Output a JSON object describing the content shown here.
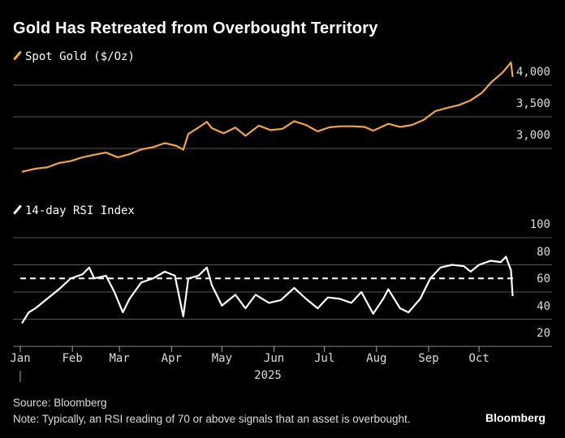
{
  "title": "Gold Has Retreated from Overbought Territory",
  "source": "Source: Bloomberg",
  "note": "Note: Typically, an RSI reading of 70 or above signals that an asset is overbought.",
  "brand": "Bloomberg",
  "year_label": "2025",
  "colors": {
    "gold": "#f2a540",
    "rsi": "#ffffff",
    "grid": "#555555",
    "background": "#000000"
  },
  "chart_data": [
    {
      "type": "line",
      "legend": "Spot Gold ($/Oz)",
      "ylim": [
        2600,
        4400
      ],
      "yticks": [
        3000,
        3500,
        4000
      ],
      "ytick_labels": [
        "3,000",
        "3,500",
        "4,000"
      ],
      "grid": true,
      "series": [
        {
          "name": "Spot Gold ($/Oz)",
          "x": [
            "2025-01-02",
            "2025-01-10",
            "2025-01-17",
            "2025-01-24",
            "2025-01-31",
            "2025-02-07",
            "2025-02-14",
            "2025-02-21",
            "2025-02-28",
            "2025-03-07",
            "2025-03-14",
            "2025-03-21",
            "2025-03-28",
            "2025-04-04",
            "2025-04-08",
            "2025-04-11",
            "2025-04-17",
            "2025-04-22",
            "2025-04-25",
            "2025-05-02",
            "2025-05-09",
            "2025-05-15",
            "2025-05-23",
            "2025-05-30",
            "2025-06-06",
            "2025-06-13",
            "2025-06-20",
            "2025-06-27",
            "2025-07-04",
            "2025-07-11",
            "2025-07-18",
            "2025-07-25",
            "2025-07-30",
            "2025-08-08",
            "2025-08-15",
            "2025-08-22",
            "2025-08-29",
            "2025-09-05",
            "2025-09-12",
            "2025-09-19",
            "2025-09-26",
            "2025-10-03",
            "2025-10-08",
            "2025-10-15",
            "2025-10-20",
            "2025-10-21"
          ],
          "values": [
            2630,
            2680,
            2700,
            2770,
            2800,
            2860,
            2900,
            2935,
            2860,
            2910,
            2985,
            3020,
            3085,
            3040,
            2980,
            3230,
            3330,
            3420,
            3320,
            3240,
            3330,
            3200,
            3360,
            3290,
            3310,
            3430,
            3370,
            3270,
            3335,
            3350,
            3350,
            3340,
            3280,
            3390,
            3340,
            3370,
            3450,
            3590,
            3640,
            3685,
            3760,
            3885,
            4040,
            4200,
            4360,
            4130
          ]
        }
      ]
    },
    {
      "type": "line",
      "legend": "14-day RSI Index",
      "ylim": [
        20,
        100
      ],
      "yticks": [
        20,
        40,
        60,
        80,
        100
      ],
      "ytick_labels": [
        "20",
        "40",
        "60",
        "80",
        "100"
      ],
      "threshold": 70,
      "grid": true,
      "xtick_labels": [
        "Jan",
        "Feb",
        "Mar",
        "Apr",
        "May",
        "Jun",
        "Jul",
        "Aug",
        "Sep",
        "Oct"
      ],
      "series": [
        {
          "name": "14-day RSI Index",
          "x": [
            "2025-01-02",
            "2025-01-06",
            "2025-01-10",
            "2025-01-17",
            "2025-01-24",
            "2025-01-31",
            "2025-02-07",
            "2025-02-11",
            "2025-02-14",
            "2025-02-21",
            "2025-02-26",
            "2025-03-03",
            "2025-03-07",
            "2025-03-14",
            "2025-03-21",
            "2025-03-28",
            "2025-04-03",
            "2025-04-08",
            "2025-04-11",
            "2025-04-17",
            "2025-04-22",
            "2025-04-25",
            "2025-05-01",
            "2025-05-09",
            "2025-05-15",
            "2025-05-21",
            "2025-05-29",
            "2025-06-05",
            "2025-06-13",
            "2025-06-20",
            "2025-06-27",
            "2025-07-03",
            "2025-07-10",
            "2025-07-17",
            "2025-07-23",
            "2025-07-30",
            "2025-08-05",
            "2025-08-08",
            "2025-08-15",
            "2025-08-20",
            "2025-08-27",
            "2025-09-02",
            "2025-09-08",
            "2025-09-15",
            "2025-09-22",
            "2025-09-26",
            "2025-10-01",
            "2025-10-08",
            "2025-10-14",
            "2025-10-17",
            "2025-10-20",
            "2025-10-21"
          ],
          "values": [
            37,
            45,
            48,
            55,
            62,
            70,
            73,
            78,
            70,
            72,
            60,
            45,
            55,
            67,
            70,
            75,
            72,
            42,
            70,
            72,
            78,
            65,
            50,
            58,
            48,
            58,
            52,
            54,
            63,
            55,
            48,
            56,
            55,
            52,
            60,
            44,
            55,
            62,
            48,
            45,
            55,
            70,
            78,
            80,
            79,
            75,
            80,
            83,
            82,
            86,
            76,
            57
          ]
        }
      ]
    }
  ]
}
